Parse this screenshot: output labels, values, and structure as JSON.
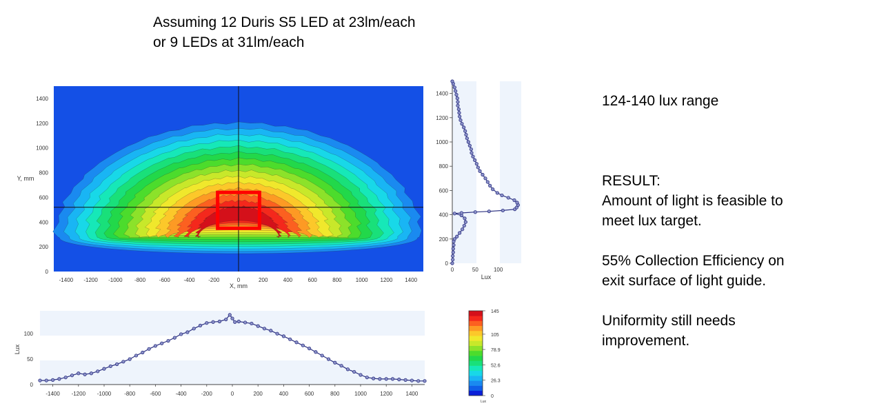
{
  "heading": {
    "line1": "Assuming 12 Duris S5 LED at 23lm/each",
    "line2": "or 9 LEDs at 31lm/each"
  },
  "notes": {
    "range": "124-140 lux range",
    "result_title": "RESULT:",
    "result_line1": "Amount of light is feasible to",
    "result_line2": "meet lux target.",
    "efficiency_line1": "55% Collection Efficiency on",
    "efficiency_line2": "exit surface of light guide.",
    "uniformity_line1": "Uniformity still needs",
    "uniformity_line2": "improvement."
  },
  "colors": {
    "background_blue": "#1450e6",
    "marker": "#2a2f80",
    "highlight_box": "#ff0000"
  },
  "chart_data": [
    {
      "type": "heatmap",
      "name": "illuminance-map",
      "xlabel": "X, mm",
      "ylabel": "Y, mm",
      "xlim": [
        -1500,
        1500
      ],
      "ylim": [
        0,
        1500
      ],
      "xticks": [
        "-1400",
        "-1200",
        "-1000",
        "-800",
        "-600",
        "-400",
        "-200",
        "0",
        "200",
        "400",
        "600",
        "800",
        "1000",
        "1200",
        "1400"
      ],
      "yticks": [
        "0",
        "200",
        "400",
        "600",
        "800",
        "1000",
        "1200",
        "1400"
      ],
      "crosshair": {
        "x": 0,
        "y": 520
      },
      "highlight_box": {
        "x": [
          -170,
          170
        ],
        "y": [
          350,
          640
        ]
      }
    },
    {
      "type": "line",
      "name": "vertical-profile",
      "xlabel": "Lux",
      "xlim": [
        0,
        150
      ],
      "ylim": [
        0,
        1500
      ],
      "xticks": [
        "0",
        "50",
        "100"
      ],
      "yticks": [
        "0",
        "200",
        "400",
        "600",
        "800",
        "1000",
        "1200",
        "1400"
      ],
      "points": [
        [
          0,
          0
        ],
        [
          1,
          30
        ],
        [
          1,
          60
        ],
        [
          2,
          90
        ],
        [
          2,
          120
        ],
        [
          3,
          150
        ],
        [
          3,
          180
        ],
        [
          5,
          200
        ],
        [
          10,
          220
        ],
        [
          16,
          250
        ],
        [
          22,
          280
        ],
        [
          26,
          310
        ],
        [
          29,
          340
        ],
        [
          27,
          370
        ],
        [
          20,
          395
        ],
        [
          5,
          410
        ],
        [
          20,
          415
        ],
        [
          50,
          422
        ],
        [
          80,
          428
        ],
        [
          110,
          435
        ],
        [
          136,
          445
        ],
        [
          140,
          460
        ],
        [
          143,
          480
        ],
        [
          141,
          500
        ],
        [
          135,
          520
        ],
        [
          122,
          540
        ],
        [
          108,
          560
        ],
        [
          98,
          580
        ],
        [
          88,
          610
        ],
        [
          82,
          640
        ],
        [
          77,
          670
        ],
        [
          72,
          700
        ],
        [
          66,
          730
        ],
        [
          60,
          760
        ],
        [
          56,
          790
        ],
        [
          53,
          820
        ],
        [
          49,
          850
        ],
        [
          45,
          880
        ],
        [
          42,
          910
        ],
        [
          41,
          940
        ],
        [
          38,
          970
        ],
        [
          35,
          1000
        ],
        [
          32,
          1030
        ],
        [
          30,
          1060
        ],
        [
          28,
          1090
        ],
        [
          25,
          1120
        ],
        [
          21,
          1150
        ],
        [
          18,
          1180
        ],
        [
          16,
          1210
        ],
        [
          15,
          1240
        ],
        [
          14,
          1270
        ],
        [
          12,
          1300
        ],
        [
          12,
          1330
        ],
        [
          11,
          1360
        ],
        [
          9,
          1390
        ],
        [
          7,
          1420
        ],
        [
          5,
          1450
        ],
        [
          2,
          1480
        ],
        [
          0,
          1500
        ]
      ]
    },
    {
      "type": "line",
      "name": "horizontal-profile",
      "ylabel": "Lux",
      "xlim": [
        -1500,
        1500
      ],
      "ylim": [
        0,
        145
      ],
      "xticks": [
        "-1400",
        "-1200",
        "-1000",
        "-800",
        "-600",
        "-400",
        "-200",
        "0",
        "200",
        "400",
        "600",
        "800",
        "1000",
        "1200",
        "1400"
      ],
      "yticks": [
        "0",
        "50",
        "100"
      ],
      "x": [
        -1500,
        -1450,
        -1400,
        -1350,
        -1300,
        -1250,
        -1200,
        -1150,
        -1100,
        -1050,
        -1000,
        -950,
        -900,
        -850,
        -800,
        -750,
        -700,
        -650,
        -600,
        -550,
        -500,
        -450,
        -400,
        -350,
        -300,
        -250,
        -200,
        -150,
        -100,
        -50,
        -20,
        0,
        20,
        50,
        100,
        150,
        200,
        250,
        300,
        350,
        400,
        450,
        500,
        550,
        600,
        650,
        700,
        750,
        800,
        850,
        900,
        950,
        1000,
        1050,
        1100,
        1150,
        1200,
        1250,
        1300,
        1350,
        1400,
        1450,
        1500
      ],
      "values": [
        8,
        8,
        9,
        11,
        14,
        18,
        22,
        20,
        22,
        26,
        31,
        36,
        40,
        45,
        50,
        57,
        63,
        70,
        76,
        81,
        86,
        92,
        99,
        103,
        110,
        116,
        121,
        123,
        124,
        128,
        137,
        130,
        123,
        124,
        122,
        120,
        115,
        110,
        106,
        100,
        95,
        89,
        83,
        77,
        71,
        64,
        57,
        50,
        43,
        37,
        30,
        25,
        19,
        14,
        12,
        11,
        11,
        11,
        10,
        9,
        8,
        7,
        7
      ]
    },
    {
      "type": "colorbar",
      "name": "lux-scale",
      "tick_labels": [
        "145",
        "105",
        "78.9",
        "52.6",
        "26.3",
        "0"
      ],
      "unit_label": "Lux",
      "colors": [
        "#0a1fd8",
        "#0f5fe8",
        "#1a8af0",
        "#19b5f4",
        "#18d8e8",
        "#16e8b8",
        "#19e07a",
        "#22d84a",
        "#4cdc2c",
        "#8ce22a",
        "#c8e82a",
        "#f0e82c",
        "#fcc82a",
        "#fd9a24",
        "#fc6020",
        "#f4281c",
        "#d4101a"
      ]
    }
  ]
}
